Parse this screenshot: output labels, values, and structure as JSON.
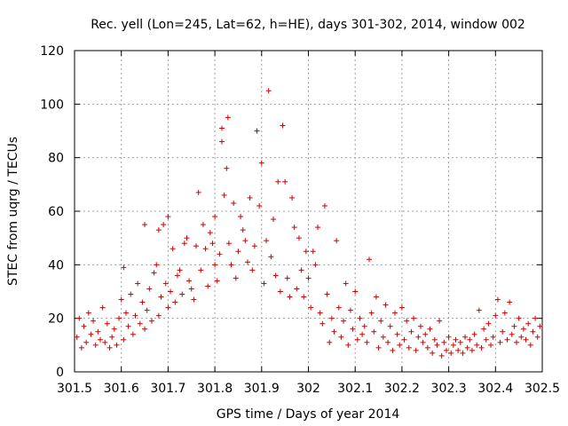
{
  "chart_data": {
    "type": "scatter",
    "title": "Rec. yell (Lon=245, Lat=62, h=HE), days 301-302, 2014, window 002",
    "xlabel": "GPS time / Days of year 2014",
    "ylabel": "STEC from uqrg / TECUs",
    "xlim": [
      301.5,
      302.5
    ],
    "ylim": [
      0,
      120
    ],
    "grid": true,
    "marker": "plus",
    "color": "#cc0000",
    "x_ticks": [
      301.5,
      301.6,
      301.7,
      301.8,
      301.9,
      302.0,
      302.1,
      302.2,
      302.3,
      302.4,
      302.5
    ],
    "x_tick_labels": [
      "301.5",
      "301.6",
      "301.7",
      "301.8",
      "301.9",
      "302",
      "302.1",
      "302.2",
      "302.3",
      "302.4",
      "302.5"
    ],
    "y_ticks": [
      0,
      20,
      40,
      60,
      80,
      100,
      120
    ],
    "y_tick_labels": [
      "0",
      "20",
      "40",
      "60",
      "80",
      "100",
      "120"
    ],
    "series": [
      {
        "name": "STEC",
        "points": [
          [
            301.505,
            13
          ],
          [
            301.51,
            20
          ],
          [
            301.515,
            9
          ],
          [
            301.52,
            17
          ],
          [
            301.525,
            11
          ],
          [
            301.53,
            22
          ],
          [
            301.535,
            14
          ],
          [
            301.54,
            19
          ],
          [
            301.545,
            10
          ],
          [
            301.55,
            15
          ],
          [
            301.555,
            12
          ],
          [
            301.56,
            24
          ],
          [
            301.565,
            11
          ],
          [
            301.57,
            18
          ],
          [
            301.575,
            9
          ],
          [
            301.58,
            13
          ],
          [
            301.585,
            16
          ],
          [
            301.59,
            10
          ],
          [
            301.595,
            20
          ],
          [
            301.6,
            27
          ],
          [
            301.605,
            39
          ],
          [
            301.605,
            12
          ],
          [
            301.61,
            22
          ],
          [
            301.615,
            17
          ],
          [
            301.62,
            29
          ],
          [
            301.625,
            14
          ],
          [
            301.63,
            21
          ],
          [
            301.635,
            33
          ],
          [
            301.64,
            18
          ],
          [
            301.645,
            26
          ],
          [
            301.65,
            55
          ],
          [
            301.65,
            16
          ],
          [
            301.655,
            23
          ],
          [
            301.66,
            31
          ],
          [
            301.665,
            19
          ],
          [
            301.67,
            37
          ],
          [
            301.675,
            40
          ],
          [
            301.68,
            53
          ],
          [
            301.68,
            21
          ],
          [
            301.685,
            28
          ],
          [
            301.69,
            55
          ],
          [
            301.695,
            33
          ],
          [
            301.7,
            58
          ],
          [
            301.7,
            24
          ],
          [
            301.705,
            30
          ],
          [
            301.71,
            46
          ],
          [
            301.715,
            26
          ],
          [
            301.72,
            36
          ],
          [
            301.725,
            38
          ],
          [
            301.73,
            29
          ],
          [
            301.735,
            48
          ],
          [
            301.74,
            50
          ],
          [
            301.745,
            34
          ],
          [
            301.75,
            31
          ],
          [
            301.755,
            27
          ],
          [
            301.76,
            47
          ],
          [
            301.765,
            67
          ],
          [
            301.77,
            38
          ],
          [
            301.775,
            55
          ],
          [
            301.78,
            46
          ],
          [
            301.785,
            32
          ],
          [
            301.79,
            52
          ],
          [
            301.795,
            48
          ],
          [
            301.8,
            58
          ],
          [
            301.8,
            40
          ],
          [
            301.805,
            34
          ],
          [
            301.81,
            44
          ],
          [
            301.815,
            91
          ],
          [
            301.815,
            86
          ],
          [
            301.82,
            66
          ],
          [
            301.825,
            76
          ],
          [
            301.828,
            95
          ],
          [
            301.83,
            48
          ],
          [
            301.835,
            40
          ],
          [
            301.84,
            63
          ],
          [
            301.845,
            35
          ],
          [
            301.85,
            45
          ],
          [
            301.855,
            58
          ],
          [
            301.86,
            53
          ],
          [
            301.865,
            49
          ],
          [
            301.87,
            41
          ],
          [
            301.875,
            65
          ],
          [
            301.88,
            38
          ],
          [
            301.885,
            47
          ],
          [
            301.89,
            90
          ],
          [
            301.895,
            62
          ],
          [
            301.9,
            78
          ],
          [
            301.905,
            33
          ],
          [
            301.91,
            49
          ],
          [
            301.915,
            105
          ],
          [
            301.92,
            43
          ],
          [
            301.925,
            57
          ],
          [
            301.93,
            36
          ],
          [
            301.935,
            71
          ],
          [
            301.94,
            30
          ],
          [
            301.945,
            92
          ],
          [
            301.95,
            71
          ],
          [
            301.955,
            35
          ],
          [
            301.96,
            28
          ],
          [
            301.965,
            65
          ],
          [
            301.97,
            54
          ],
          [
            301.975,
            31
          ],
          [
            301.98,
            50
          ],
          [
            301.985,
            38
          ],
          [
            301.99,
            28
          ],
          [
            301.995,
            45
          ],
          [
            302.0,
            35
          ],
          [
            302.005,
            24
          ],
          [
            302.01,
            45
          ],
          [
            302.015,
            40
          ],
          [
            302.02,
            54
          ],
          [
            302.025,
            22
          ],
          [
            302.03,
            18
          ],
          [
            302.035,
            62
          ],
          [
            302.04,
            29
          ],
          [
            302.045,
            11
          ],
          [
            302.05,
            20
          ],
          [
            302.055,
            15
          ],
          [
            302.06,
            49
          ],
          [
            302.065,
            24
          ],
          [
            302.07,
            13
          ],
          [
            302.075,
            19
          ],
          [
            302.08,
            33
          ],
          [
            302.085,
            10
          ],
          [
            302.09,
            23
          ],
          [
            302.095,
            16
          ],
          [
            302.1,
            30
          ],
          [
            302.105,
            12
          ],
          [
            302.11,
            20
          ],
          [
            302.115,
            14
          ],
          [
            302.12,
            17
          ],
          [
            302.125,
            11
          ],
          [
            302.13,
            42
          ],
          [
            302.135,
            22
          ],
          [
            302.14,
            15
          ],
          [
            302.145,
            28
          ],
          [
            302.15,
            9
          ],
          [
            302.155,
            19
          ],
          [
            302.16,
            13
          ],
          [
            302.165,
            25
          ],
          [
            302.17,
            11
          ],
          [
            302.175,
            17
          ],
          [
            302.18,
            8
          ],
          [
            302.185,
            22
          ],
          [
            302.19,
            14
          ],
          [
            302.195,
            10
          ],
          [
            302.2,
            24
          ],
          [
            302.205,
            12
          ],
          [
            302.21,
            19
          ],
          [
            302.215,
            9
          ],
          [
            302.22,
            15
          ],
          [
            302.225,
            20
          ],
          [
            302.23,
            8
          ],
          [
            302.235,
            13
          ],
          [
            302.24,
            17
          ],
          [
            302.245,
            11
          ],
          [
            302.25,
            14
          ],
          [
            302.255,
            9
          ],
          [
            302.26,
            16
          ],
          [
            302.265,
            7
          ],
          [
            302.27,
            12
          ],
          [
            302.275,
            10
          ],
          [
            302.28,
            19
          ],
          [
            302.285,
            6
          ],
          [
            302.29,
            11
          ],
          [
            302.295,
            8
          ],
          [
            302.3,
            13
          ],
          [
            302.305,
            7
          ],
          [
            302.31,
            10
          ],
          [
            302.315,
            12
          ],
          [
            302.32,
            8
          ],
          [
            302.325,
            11
          ],
          [
            302.33,
            7
          ],
          [
            302.335,
            13
          ],
          [
            302.34,
            9
          ],
          [
            302.345,
            12
          ],
          [
            302.35,
            8
          ],
          [
            302.355,
            14
          ],
          [
            302.36,
            10
          ],
          [
            302.365,
            23
          ],
          [
            302.37,
            9
          ],
          [
            302.375,
            16
          ],
          [
            302.38,
            12
          ],
          [
            302.385,
            18
          ],
          [
            302.39,
            10
          ],
          [
            302.395,
            13
          ],
          [
            302.4,
            21
          ],
          [
            302.405,
            27
          ],
          [
            302.41,
            11
          ],
          [
            302.415,
            15
          ],
          [
            302.42,
            22
          ],
          [
            302.425,
            12
          ],
          [
            302.43,
            26
          ],
          [
            302.435,
            14
          ],
          [
            302.44,
            17
          ],
          [
            302.445,
            11
          ],
          [
            302.45,
            20
          ],
          [
            302.455,
            13
          ],
          [
            302.46,
            16
          ],
          [
            302.465,
            12
          ],
          [
            302.47,
            18
          ],
          [
            302.475,
            10
          ],
          [
            302.48,
            15
          ],
          [
            302.485,
            20
          ],
          [
            302.49,
            13
          ],
          [
            302.495,
            17
          ]
        ]
      }
    ]
  }
}
